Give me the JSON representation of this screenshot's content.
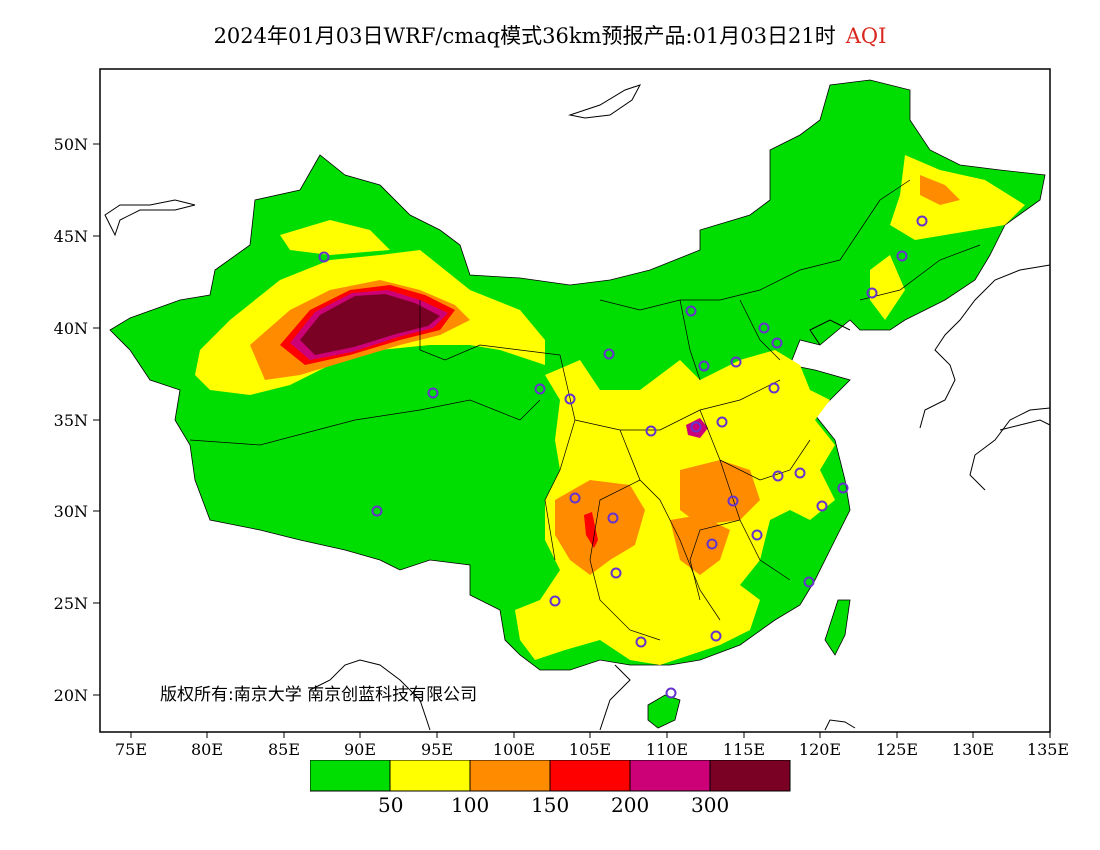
{
  "title": {
    "main": "2024年01月03日WRF/cmaq模式36km预报产品:01月03日21时",
    "variable": "AQI"
  },
  "y_axis": [
    "50N",
    "45N",
    "40N",
    "35N",
    "30N",
    "25N",
    "20N"
  ],
  "x_axis": [
    "75E",
    "80E",
    "85E",
    "90E",
    "95E",
    "100E",
    "105E",
    "110E",
    "115E",
    "120E",
    "125E",
    "130E",
    "135E"
  ],
  "copyright": "版权所有:南京大学  南京创蓝科技有限公司",
  "legend": {
    "colors": [
      "#00dd00",
      "#ffff00",
      "#ff8c00",
      "#ff0000",
      "#cc0077",
      "#7a0024"
    ],
    "labels": [
      "50",
      "100",
      "150",
      "200",
      "300"
    ]
  },
  "colors": {
    "ocean": "#ffffff",
    "station_marker": "#6633cc"
  }
}
